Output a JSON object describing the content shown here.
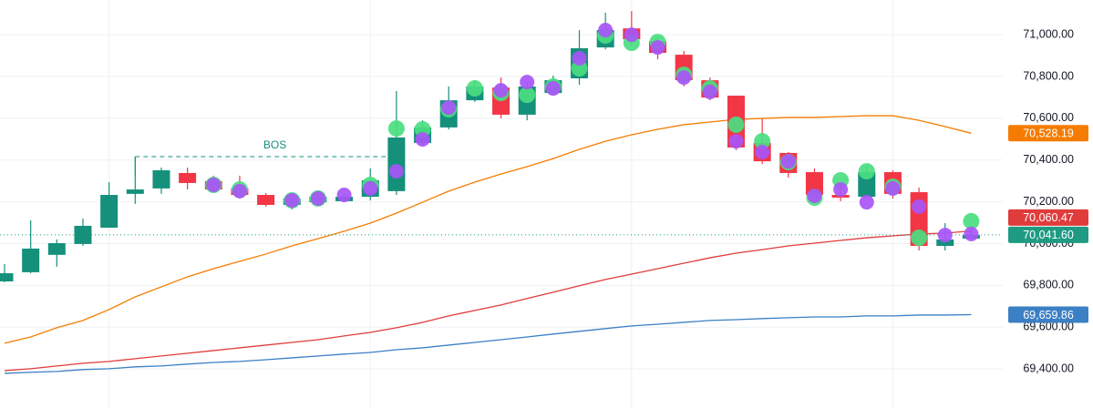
{
  "chart_data": {
    "type": "candlestick",
    "categories": [
      null,
      null,
      null,
      null,
      null,
      null,
      null,
      null,
      null,
      null,
      null,
      null,
      null,
      null,
      null,
      null,
      null,
      null,
      null,
      null,
      null,
      null,
      null,
      null,
      null,
      null,
      null,
      null,
      null,
      null,
      null,
      null,
      null,
      null,
      null,
      null,
      null,
      null
    ],
    "candles": {
      "up_color": "#15907b",
      "down_color": "#f23645",
      "open": [
        69819,
        69863,
        69946,
        69998,
        70076,
        70238,
        70264,
        70338,
        70299,
        70264,
        70233,
        70185,
        70198,
        70203,
        70224,
        70251,
        70482,
        70556,
        70686,
        70747,
        70617,
        70721,
        70791,
        70939,
        71030,
        70969,
        70904,
        70782,
        70708,
        70482,
        70434,
        70342,
        70233,
        70224,
        70342,
        70246,
        69989,
        70024
      ],
      "high": [
        69902,
        70111,
        70020,
        70120,
        70294,
        70416,
        70364,
        70364,
        70325,
        70325,
        70242,
        70242,
        70238,
        70242,
        70360,
        70730,
        70590,
        70752,
        70782,
        70795,
        70773,
        70804,
        71022,
        71105,
        71113,
        70991,
        70922,
        70795,
        70708,
        70599,
        70438,
        70360,
        70272,
        70373,
        70351,
        70268,
        70098,
        70060
      ],
      "low": [
        69815,
        69858,
        69889,
        69989,
        70076,
        70190,
        70238,
        70259,
        70246,
        70216,
        70177,
        70163,
        70190,
        70198,
        70207,
        70233,
        70468,
        70547,
        70678,
        70599,
        70590,
        70708,
        70760,
        70930,
        70948,
        70882,
        70752,
        70686,
        70447,
        70381,
        70316,
        70207,
        70203,
        70220,
        70216,
        69967,
        69967,
        70020
      ],
      "close": [
        69858,
        69976,
        70002,
        70085,
        70233,
        70259,
        70351,
        70290,
        70259,
        70233,
        70185,
        70216,
        70224,
        70224,
        70303,
        70508,
        70556,
        70686,
        70752,
        70617,
        70752,
        70782,
        70935,
        71022,
        70978,
        70913,
        70782,
        70699,
        70460,
        70394,
        70338,
        70233,
        70220,
        70342,
        70238,
        69989,
        70020,
        70041.6
      ],
      "value_labels": [
        null,
        null,
        null,
        null,
        null,
        null,
        null,
        null,
        null,
        null,
        null,
        null,
        null,
        null,
        null,
        null,
        null,
        null,
        null,
        null,
        null,
        null,
        null,
        null,
        null,
        null,
        null,
        null,
        null,
        null,
        null,
        null,
        null,
        null,
        null,
        null,
        null,
        "70,041.60"
      ],
      "tag_color": "#1f9b83"
    },
    "series": [
      {
        "color": "#f57c00",
        "values": [
          69523,
          69553,
          69597,
          69632,
          69684,
          69745,
          69793,
          69841,
          69880,
          69915,
          69950,
          69989,
          70024,
          70059,
          70098,
          70146,
          70198,
          70251,
          70294,
          70333,
          70368,
          70407,
          70451,
          70490,
          70521,
          70547,
          70569,
          70582,
          70595,
          70599,
          70604,
          70604,
          70608,
          70612,
          70612,
          70590,
          70560,
          70528.19
        ],
        "value_labels": [
          null,
          null,
          null,
          null,
          null,
          null,
          null,
          null,
          null,
          null,
          null,
          null,
          null,
          null,
          null,
          null,
          null,
          null,
          null,
          null,
          null,
          null,
          null,
          null,
          null,
          null,
          null,
          null,
          null,
          null,
          null,
          null,
          null,
          null,
          null,
          null,
          null,
          "70,528.19"
        ]
      },
      {
        "color": "#e03c3c",
        "values": [
          69392,
          69401,
          69414,
          69427,
          69436,
          69449,
          69462,
          69475,
          69488,
          69501,
          69514,
          69527,
          69540,
          69558,
          69575,
          69597,
          69623,
          69654,
          69680,
          69706,
          69737,
          69767,
          69798,
          69828,
          69854,
          69880,
          69906,
          69932,
          69954,
          69971,
          69989,
          70002,
          70015,
          70028,
          70037,
          70046,
          70050,
          70060.47
        ],
        "value_labels": [
          null,
          null,
          null,
          null,
          null,
          null,
          null,
          null,
          null,
          null,
          null,
          null,
          null,
          null,
          null,
          null,
          null,
          null,
          null,
          null,
          null,
          null,
          null,
          null,
          null,
          null,
          null,
          null,
          null,
          null,
          null,
          null,
          null,
          null,
          null,
          null,
          null,
          "70,060.47"
        ]
      },
      {
        "color": "#3b7fc4",
        "values": [
          69379,
          69384,
          69388,
          69397,
          69401,
          69410,
          69414,
          69423,
          69431,
          69436,
          69444,
          69453,
          69462,
          69471,
          69479,
          69492,
          69501,
          69514,
          69527,
          69540,
          69553,
          69567,
          69580,
          69593,
          69606,
          69614,
          69623,
          69632,
          69636,
          69641,
          69645,
          69649,
          69649,
          69654,
          69654,
          69658,
          69658,
          69659.86
        ],
        "value_labels": [
          null,
          null,
          null,
          null,
          null,
          null,
          null,
          null,
          null,
          null,
          null,
          null,
          null,
          null,
          null,
          null,
          null,
          null,
          null,
          null,
          null,
          null,
          null,
          null,
          null,
          null,
          null,
          null,
          null,
          null,
          null,
          null,
          null,
          null,
          null,
          null,
          null,
          "69,659.86"
        ]
      }
    ],
    "dots": [
      {
        "color": "#4ade80",
        "values": [
          null,
          null,
          null,
          null,
          null,
          null,
          null,
          null,
          70281,
          70259,
          null,
          70207,
          70216,
          null,
          70281,
          70551,
          70547,
          70643,
          70743,
          70721,
          70712,
          70752,
          70839,
          70996,
          70961,
          70965,
          70808,
          70743,
          70569,
          70490,
          70390,
          70220,
          70303,
          70346,
          70272,
          70028,
          null,
          70107
        ]
      },
      {
        "color": "#a855f7",
        "values": [
          null,
          null,
          null,
          null,
          null,
          null,
          null,
          null,
          70281,
          70251,
          null,
          70207,
          70216,
          70233,
          70264,
          70346,
          70499,
          70651,
          null,
          70734,
          70773,
          70743,
          70887,
          71022,
          71000,
          70939,
          70795,
          70726,
          70490,
          70438,
          70394,
          70229,
          70259,
          70198,
          70264,
          70177,
          70041,
          70046
        ]
      }
    ],
    "annotation": {
      "text": "BOS",
      "value": 70416,
      "color": "#15907b"
    },
    "ylim": [
      69213,
      71166
    ],
    "yticks": [
      {
        "value": 69400,
        "label": "69,400.00"
      },
      {
        "value": 69600,
        "label": "69,600.00"
      },
      {
        "value": 69800,
        "label": "69,800.00"
      },
      {
        "value": 70000,
        "label": "70,000.00"
      },
      {
        "value": 70200,
        "label": "70,200.00"
      },
      {
        "value": 70400,
        "label": "70,400.00"
      },
      {
        "value": 70600,
        "label": "70,600.00"
      },
      {
        "value": 70800,
        "label": "70,800.00"
      },
      {
        "value": 71000,
        "label": "71,000.00"
      }
    ],
    "grid": true
  }
}
